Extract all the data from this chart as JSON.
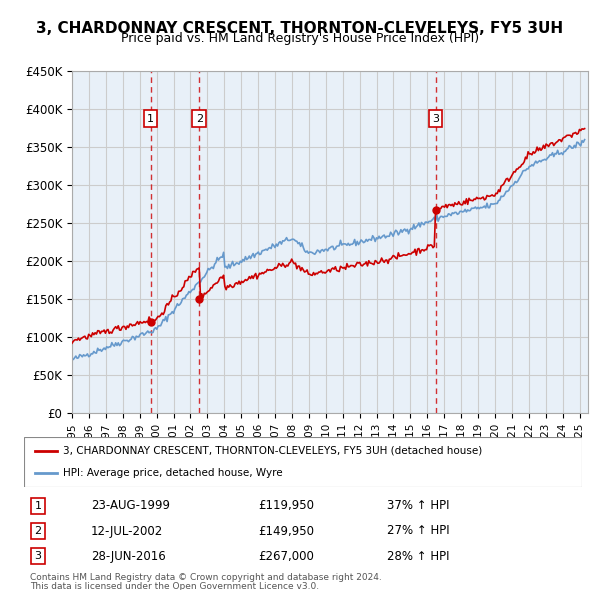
{
  "title": "3, CHARDONNAY CRESCENT, THORNTON-CLEVELEYS, FY5 3UH",
  "subtitle": "Price paid vs. HM Land Registry's House Price Index (HPI)",
  "legend_line1": "3, CHARDONNAY CRESCENT, THORNTON-CLEVELEYS, FY5 3UH (detached house)",
  "legend_line2": "HPI: Average price, detached house, Wyre",
  "footer1": "Contains HM Land Registry data © Crown copyright and database right 2024.",
  "footer2": "This data is licensed under the Open Government Licence v3.0.",
  "ylim": [
    0,
    450000
  ],
  "yticks": [
    0,
    50000,
    100000,
    150000,
    200000,
    250000,
    300000,
    350000,
    400000,
    450000
  ],
  "ytick_labels": [
    "£0",
    "£50K",
    "£100K",
    "£150K",
    "£200K",
    "£250K",
    "£300K",
    "£350K",
    "£400K",
    "£450K"
  ],
  "xlim_start": 1995.0,
  "xlim_end": 2025.5,
  "sale_points": [
    {
      "label": "1",
      "year": 1999.644,
      "price": 119950,
      "date": "23-AUG-1999",
      "price_str": "£119,950",
      "hpi_pct": "37% ↑ HPI"
    },
    {
      "label": "2",
      "year": 2002.528,
      "price": 149950,
      "date": "12-JUL-2002",
      "price_str": "£149,950",
      "hpi_pct": "27% ↑ HPI"
    },
    {
      "label": "3",
      "year": 2016.489,
      "price": 267000,
      "date": "28-JUN-2016",
      "price_str": "£267,000",
      "hpi_pct": "28% ↑ HPI"
    }
  ],
  "red_color": "#cc0000",
  "blue_color": "#6699cc",
  "bg_color": "#e8f0f8",
  "grid_color": "#cccccc",
  "dashed_color": "#cc0000"
}
